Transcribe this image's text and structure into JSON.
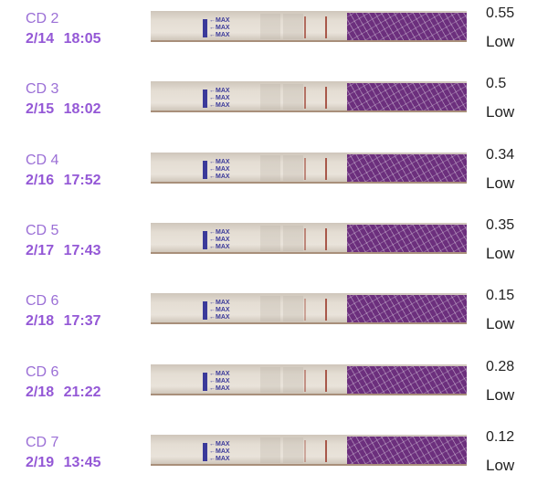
{
  "colors": {
    "cd_label": "#9b6fd6",
    "date": "#9458d6",
    "strip_lh": "#6c2f7d"
  },
  "strip_marker": "MAX",
  "entries": [
    {
      "cd": "CD 2",
      "date": "2/14 18:05",
      "value": "0.55",
      "level": "Low"
    },
    {
      "cd": "CD 3",
      "date": "2/15 18:02",
      "value": "0.5",
      "level": "Low"
    },
    {
      "cd": "CD 4",
      "date": "2/16 17:52",
      "value": "0.34",
      "level": "Low"
    },
    {
      "cd": "CD 5",
      "date": "2/17 17:43",
      "value": "0.35",
      "level": "Low"
    },
    {
      "cd": "CD 6",
      "date": "2/18 17:37",
      "value": "0.15",
      "level": "Low"
    },
    {
      "cd": "CD 6",
      "date": "2/18 21:22",
      "value": "0.28",
      "level": "Low"
    },
    {
      "cd": "CD 7",
      "date": "2/19 13:45",
      "value": "0.12",
      "level": "Low"
    }
  ]
}
